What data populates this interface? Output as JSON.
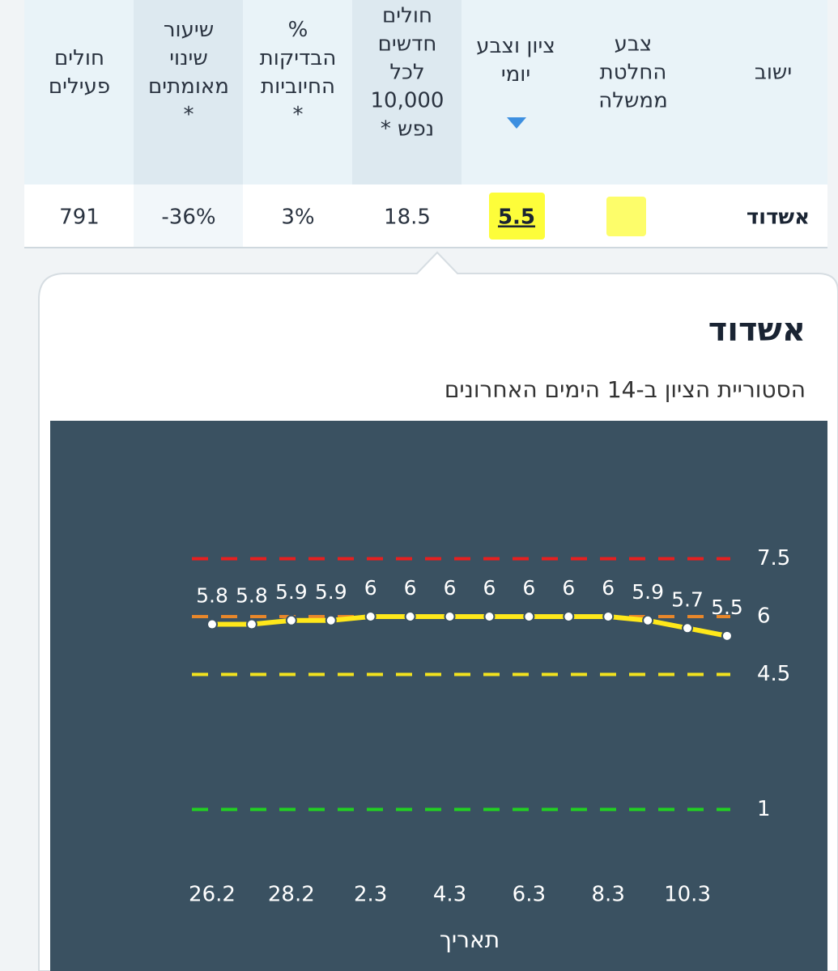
{
  "table": {
    "headers": [
      [
        "ישוב"
      ],
      [
        "צבע",
        "החלטת",
        "ממשלה"
      ],
      [
        "ציון וצבע",
        "יומי"
      ],
      [
        "חולים",
        "חדשים",
        "לכל",
        "10,000",
        "נפש *"
      ],
      [
        "%",
        "הבדיקות",
        "החיוביות",
        "*"
      ],
      [
        "שיעור",
        "שינוי",
        "מאומתים",
        "*"
      ],
      [
        "חולים",
        "פעילים"
      ]
    ],
    "row": {
      "city": "אשדוד",
      "score": "5.5",
      "new_cases": "18.5",
      "positive": "3%",
      "change": "-36%",
      "active": "791"
    }
  },
  "popup": {
    "title": "אשדוד",
    "subtitle": "הסטוריית הציון ב-14 הימים האחרונים"
  },
  "chart_data": {
    "type": "line",
    "x_label": "תאריך",
    "categories": [
      "26.2",
      null,
      "28.2",
      null,
      "2.3",
      null,
      "4.3",
      null,
      "6.3",
      null,
      "8.3",
      null,
      "10.3",
      null
    ],
    "values": [
      5.8,
      5.8,
      5.9,
      5.9,
      6,
      6,
      6,
      6,
      6,
      6,
      6,
      5.9,
      5.7,
      5.5
    ],
    "color": "#ffe81a",
    "ylim": [
      0,
      9
    ],
    "yticks": [
      1,
      4.5,
      6,
      7.5
    ],
    "ytick_colors": [
      "#22d022",
      "#f2e21e",
      "#e8872a",
      "#e62020"
    ],
    "grid": false
  }
}
